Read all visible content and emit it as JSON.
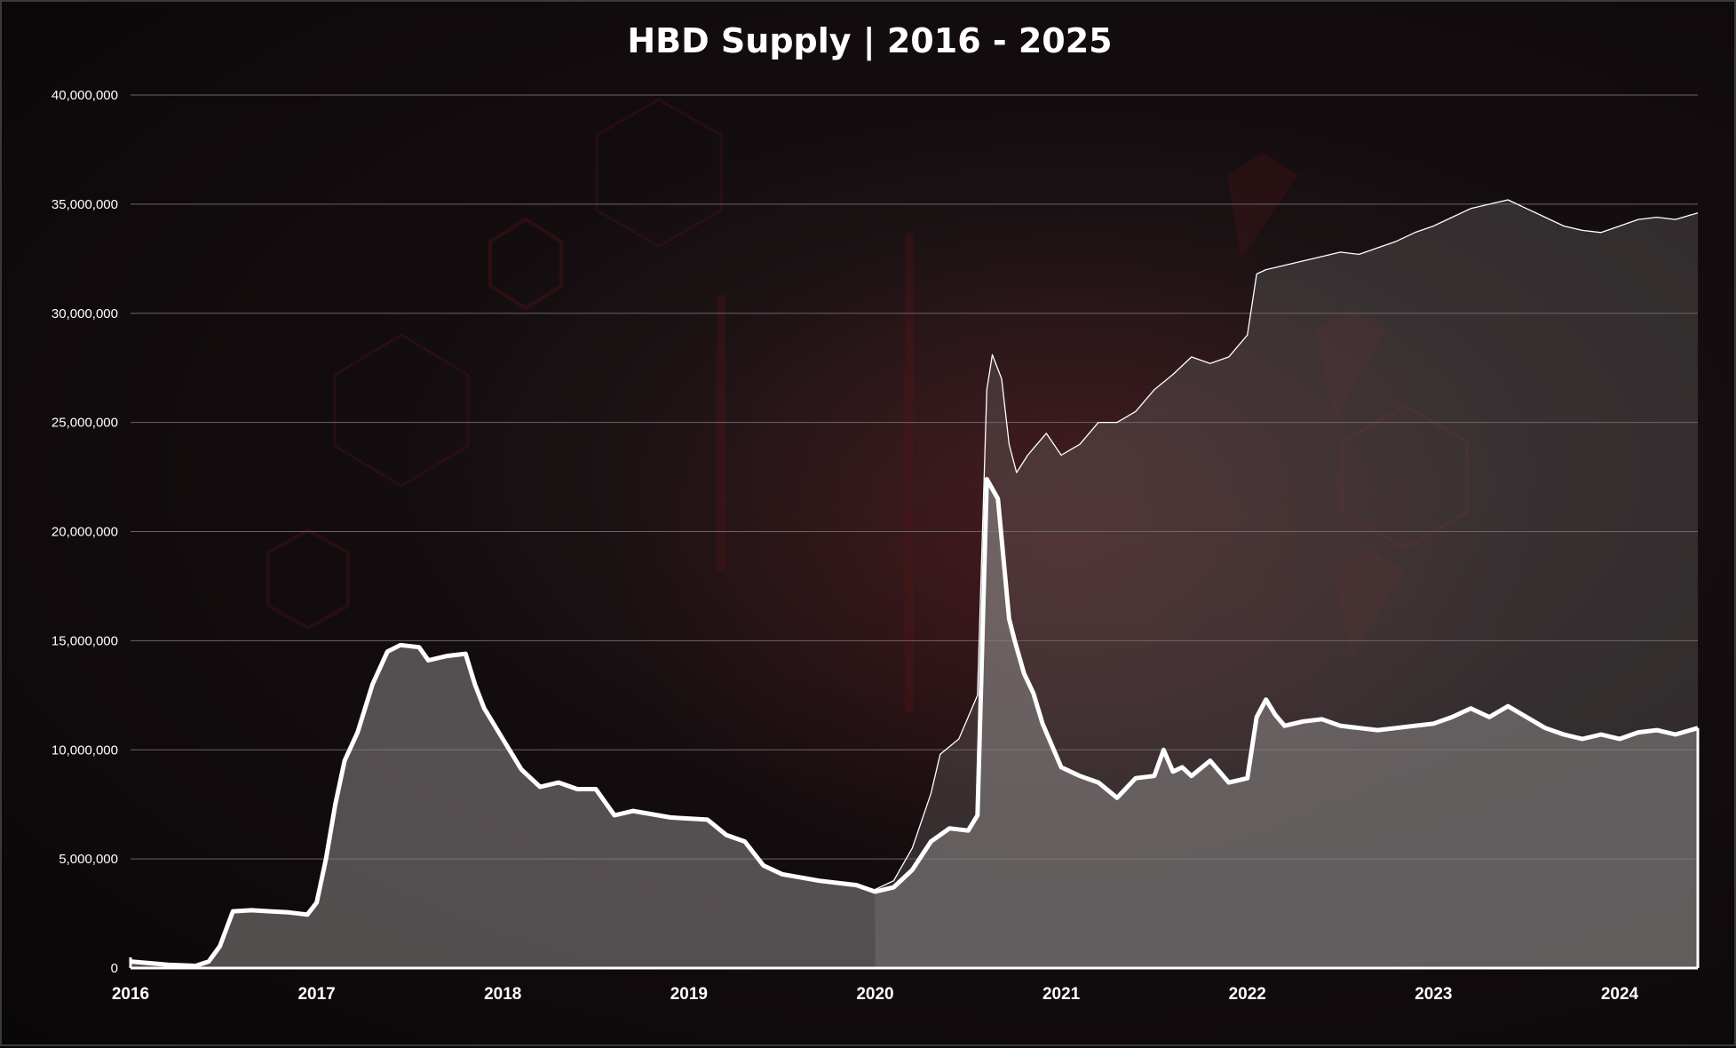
{
  "chart_data": {
    "type": "area",
    "title": "HBD Supply | 2016 - 2025",
    "xlabel": "",
    "ylabel": "",
    "ylim": [
      0,
      40000000
    ],
    "xlim": [
      2016.0,
      2024.42
    ],
    "grid": true,
    "legend": "none",
    "y_ticks": [
      "0",
      "5,000,000",
      "10,000,000",
      "15,000,000",
      "20,000,000",
      "25,000,000",
      "30,000,000",
      "35,000,000",
      "40,000,000"
    ],
    "x_ticks": [
      "2016",
      "2017",
      "2018",
      "2019",
      "2020",
      "2021",
      "2022",
      "2023",
      "2024"
    ],
    "series": [
      {
        "line": "thick",
        "color": "#ffffff",
        "x": [
          2016.0,
          2016.2,
          2016.35,
          2016.42,
          2016.48,
          2016.55,
          2016.65,
          2016.75,
          2016.85,
          2016.95,
          2017.0,
          2017.05,
          2017.1,
          2017.15,
          2017.22,
          2017.3,
          2017.38,
          2017.45,
          2017.55,
          2017.6,
          2017.7,
          2017.8,
          2017.85,
          2017.9,
          2018.0,
          2018.1,
          2018.2,
          2018.3,
          2018.4,
          2018.5,
          2018.6,
          2018.7,
          2018.9,
          2019.1,
          2019.2,
          2019.3,
          2019.4,
          2019.5,
          2019.7,
          2019.9,
          2020.0,
          2020.1,
          2020.2,
          2020.3,
          2020.4,
          2020.5,
          2020.55,
          2020.6,
          2020.66,
          2020.72,
          2020.75,
          2020.8,
          2020.85,
          2020.9,
          2021.0,
          2021.1,
          2021.2,
          2021.3,
          2021.4,
          2021.5,
          2021.55,
          2021.6,
          2021.65,
          2021.7,
          2021.8,
          2021.9,
          2022.0,
          2022.05,
          2022.1,
          2022.15,
          2022.2,
          2022.3,
          2022.4,
          2022.5,
          2022.6,
          2022.7,
          2022.8,
          2022.9,
          2023.0,
          2023.1,
          2023.2,
          2023.3,
          2023.4,
          2023.5,
          2023.6,
          2023.7,
          2023.8,
          2023.9,
          2024.0,
          2024.1,
          2024.2,
          2024.3,
          2024.42
        ],
        "values": [
          300000,
          150000,
          100000,
          300000,
          1000000,
          2600000,
          2650000,
          2600000,
          2550000,
          2450000,
          3000000,
          5000000,
          7500000,
          9500000,
          10800000,
          13000000,
          14500000,
          14800000,
          14700000,
          14100000,
          14300000,
          14400000,
          13000000,
          11900000,
          10500000,
          9100000,
          8300000,
          8500000,
          8200000,
          8200000,
          7000000,
          7200000,
          6900000,
          6800000,
          6100000,
          5800000,
          4700000,
          4300000,
          4000000,
          3800000,
          3500000,
          3700000,
          4500000,
          5800000,
          6400000,
          6300000,
          7000000,
          22400000,
          21500000,
          16000000,
          15000000,
          13500000,
          12600000,
          11200000,
          9200000,
          8800000,
          8500000,
          7800000,
          8700000,
          8800000,
          10000000,
          9000000,
          9200000,
          8800000,
          9500000,
          8500000,
          8700000,
          11500000,
          12300000,
          11600000,
          11100000,
          11300000,
          11400000,
          11100000,
          11000000,
          10900000,
          11000000,
          11100000,
          11200000,
          11500000,
          11900000,
          11500000,
          12000000,
          11500000,
          11000000,
          10700000,
          10500000,
          10700000,
          10500000,
          10800000,
          10900000,
          10700000,
          11000000
        ]
      },
      {
        "line": "thin",
        "color": "#ffffff",
        "x": [
          2020.0,
          2020.1,
          2020.2,
          2020.3,
          2020.35,
          2020.45,
          2020.55,
          2020.6,
          2020.63,
          2020.68,
          2020.72,
          2020.76,
          2020.82,
          2020.87,
          2020.92,
          2021.0,
          2021.1,
          2021.2,
          2021.3,
          2021.4,
          2021.5,
          2021.6,
          2021.7,
          2021.8,
          2021.9,
          2021.95,
          2022.0,
          2022.05,
          2022.1,
          2022.2,
          2022.3,
          2022.4,
          2022.5,
          2022.6,
          2022.7,
          2022.8,
          2022.9,
          2023.0,
          2023.1,
          2023.2,
          2023.3,
          2023.4,
          2023.5,
          2023.6,
          2023.7,
          2023.8,
          2023.9,
          2024.0,
          2024.1,
          2024.2,
          2024.3,
          2024.42
        ],
        "values": [
          3600000,
          4000000,
          5500000,
          8000000,
          9800000,
          10500000,
          12500000,
          26500000,
          28100000,
          27000000,
          24000000,
          22700000,
          23500000,
          24000000,
          24500000,
          23500000,
          24000000,
          25000000,
          25000000,
          25500000,
          26500000,
          27200000,
          28000000,
          27700000,
          28000000,
          28500000,
          29000000,
          31800000,
          32000000,
          32200000,
          32400000,
          32600000,
          32800000,
          32700000,
          33000000,
          33300000,
          33700000,
          34000000,
          34400000,
          34800000,
          35000000,
          35200000,
          34800000,
          34400000,
          34000000,
          33800000,
          33700000,
          34000000,
          34300000,
          34400000,
          34300000,
          34600000
        ]
      }
    ]
  }
}
